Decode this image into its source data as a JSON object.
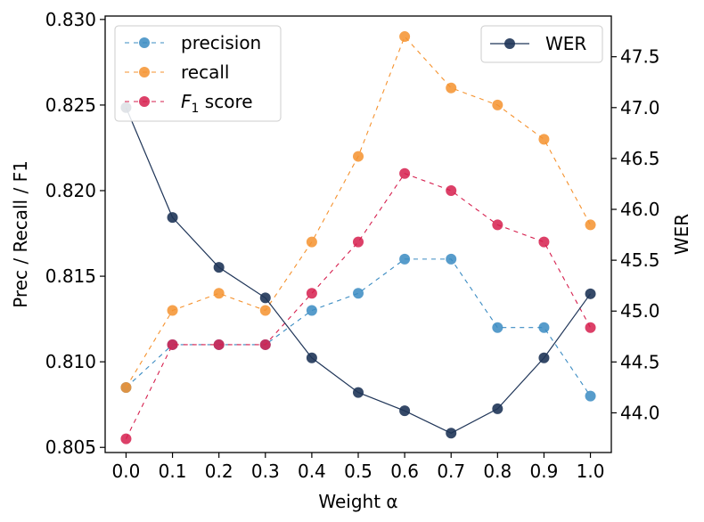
{
  "chart_data": {
    "type": "line",
    "xlabel": "Weight α",
    "ylabel_left": "Prec / Recall / F1",
    "ylabel_right": "WER",
    "x": [
      0.0,
      0.1,
      0.2,
      0.3,
      0.4,
      0.5,
      0.6,
      0.7,
      0.8,
      0.9,
      1.0
    ],
    "x_tick_labels": [
      "0.0",
      "0.1",
      "0.2",
      "0.3",
      "0.4",
      "0.5",
      "0.6",
      "0.7",
      "0.8",
      "0.9",
      "1.0"
    ],
    "ylim_left": [
      0.8047,
      0.8302
    ],
    "ylim_right": [
      43.61,
      47.9
    ],
    "y_ticks_left": [
      0.805,
      0.81,
      0.815,
      0.82,
      0.825,
      0.83
    ],
    "y_tick_labels_left": [
      "0.805",
      "0.810",
      "0.815",
      "0.820",
      "0.825",
      "0.830"
    ],
    "y_ticks_right": [
      44.0,
      44.5,
      45.0,
      45.5,
      46.0,
      46.5,
      47.0,
      47.5
    ],
    "y_tick_labels_right": [
      "44.0",
      "44.5",
      "45.0",
      "45.5",
      "46.0",
      "46.5",
      "47.0",
      "47.5"
    ],
    "series_left": [
      {
        "name": "precision",
        "color": "#3a8bc2",
        "dash": true,
        "values": [
          0.8085,
          0.811,
          0.811,
          0.811,
          0.813,
          0.814,
          0.816,
          0.816,
          0.812,
          0.812,
          0.808
        ]
      },
      {
        "name": "recall",
        "color": "#f5922e",
        "dash": true,
        "values": [
          0.8085,
          0.813,
          0.814,
          0.813,
          0.817,
          0.822,
          0.829,
          0.826,
          0.825,
          0.823,
          0.818
        ]
      },
      {
        "name": "F1 score",
        "color": "#d61f4e",
        "dash": true,
        "values": [
          0.8055,
          0.811,
          0.811,
          0.811,
          0.814,
          0.817,
          0.821,
          0.82,
          0.818,
          0.817,
          0.812
        ]
      }
    ],
    "series_right": [
      {
        "name": "WER",
        "color": "#1f3558",
        "dash": false,
        "values": [
          47.0,
          45.92,
          45.43,
          45.13,
          44.54,
          44.2,
          44.02,
          43.8,
          44.04,
          44.54,
          45.17
        ]
      }
    ],
    "legend_left": {
      "placement": "top-left",
      "entries": [
        "precision",
        "recall",
        "F",
        "1",
        " score"
      ]
    },
    "legend_right": {
      "placement": "top-right",
      "entries": [
        "WER"
      ]
    }
  }
}
